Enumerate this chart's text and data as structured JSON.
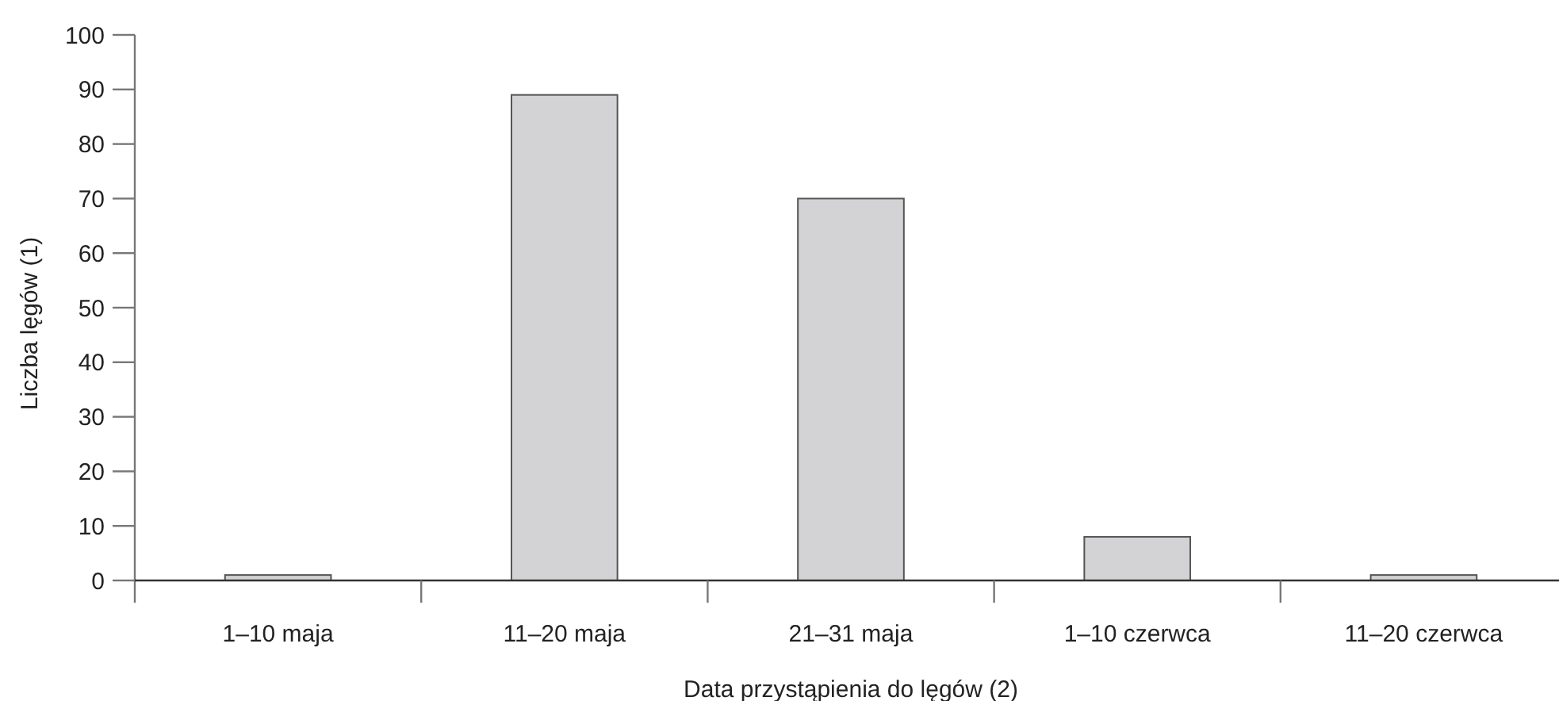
{
  "chart_data": {
    "type": "bar",
    "xlabel": "Data przystąpienia do lęgów (2)",
    "ylabel": "Liczba lęgów (1)",
    "categories": [
      "1–10 maja",
      "11–20 maja",
      "21–31 maja",
      "1–10 czerwca",
      "11–20 czerwca"
    ],
    "values": [
      1,
      89,
      70,
      8,
      1
    ],
    "color": "#d3d3d5",
    "ylim": [
      0,
      100
    ],
    "yticks": [
      0,
      10,
      20,
      30,
      40,
      50,
      60,
      70,
      80,
      90,
      100
    ],
    "grid": false
  }
}
